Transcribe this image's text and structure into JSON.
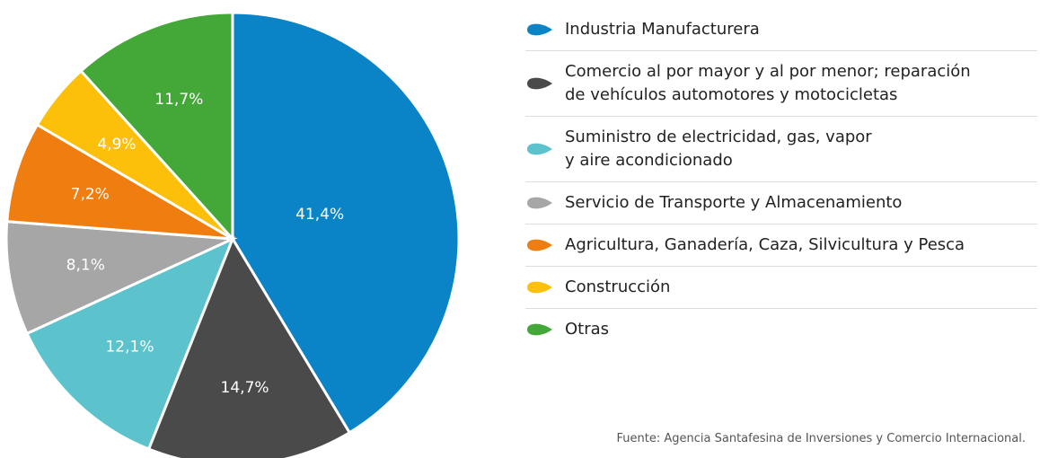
{
  "chart_data": {
    "type": "pie",
    "series": [
      {
        "name": "Industria Manufacturera",
        "color": "#0a84c6",
        "values": [
          41.4
        ],
        "value_labels": [
          "41,4%"
        ]
      },
      {
        "name": "Comercio al por mayor y al por menor; reparación\nde vehículos automotores y motocicletas",
        "color": "#4a4a4a",
        "values": [
          14.7
        ],
        "value_labels": [
          "14,7%"
        ]
      },
      {
        "name": "Suministro de electricidad, gas, vapor\ny aire acondicionado",
        "color": "#5cc3cc",
        "values": [
          12.1
        ],
        "value_labels": [
          "12,1%"
        ]
      },
      {
        "name": "Servicio de Transporte y Almacenamiento",
        "color": "#a6a6a6",
        "values": [
          8.1
        ],
        "value_labels": [
          "8,1%"
        ]
      },
      {
        "name": "Agricultura, Ganadería, Caza, Silvicultura y Pesca",
        "color": "#ef7d0f",
        "values": [
          7.2
        ],
        "value_labels": [
          "7,2%"
        ]
      },
      {
        "name": "Construcción",
        "color": "#fcc00a",
        "values": [
          4.9
        ],
        "value_labels": [
          "4,9%"
        ]
      },
      {
        "name": "Otras",
        "color": "#44a838",
        "values": [
          11.7
        ],
        "value_labels": [
          "11,7%"
        ]
      }
    ],
    "source": "Fuente: Agencia Santafesina de Inversiones y Comercio Internacional."
  }
}
